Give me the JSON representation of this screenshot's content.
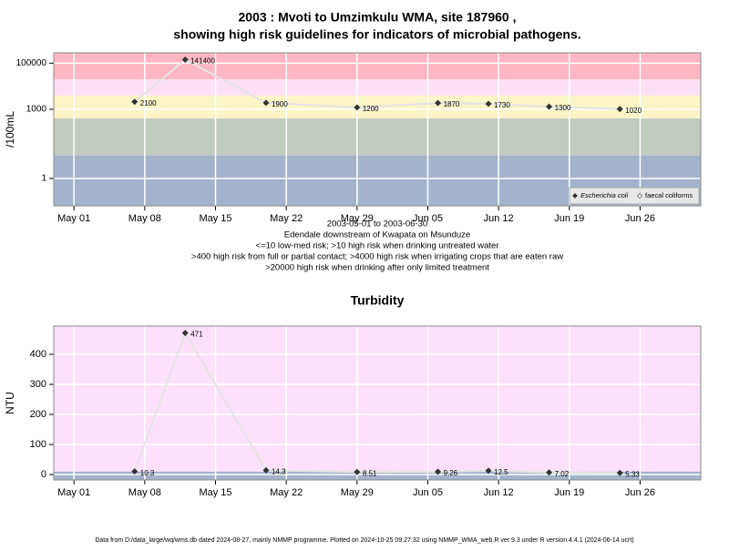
{
  "chart_data": [
    {
      "type": "line",
      "title": [
        "2003 : Mvoti to Umzimkulu WMA, site 187960 ,",
        "showing high risk guidelines for indicators of microbial pathogens."
      ],
      "ylabel": "/100mL",
      "log_y": true,
      "grid": true,
      "legend": "bottom-right",
      "x": [
        "2003-05-07",
        "2003-05-12",
        "2003-05-20",
        "2003-05-29",
        "2003-06-06",
        "2003-06-11",
        "2003-06-17",
        "2003-06-24"
      ],
      "xlim": [
        "2003-04-29",
        "2003-07-02"
      ],
      "xticks": [
        {
          "value": "2003-05-01",
          "label": "May 01"
        },
        {
          "value": "2003-05-08",
          "label": "May 08"
        },
        {
          "value": "2003-05-15",
          "label": "May 15"
        },
        {
          "value": "2003-05-22",
          "label": "May 22"
        },
        {
          "value": "2003-05-29",
          "label": "May 29"
        },
        {
          "value": "2003-06-05",
          "label": "Jun 05"
        },
        {
          "value": "2003-06-12",
          "label": "Jun 12"
        },
        {
          "value": "2003-06-19",
          "label": "Jun 19"
        },
        {
          "value": "2003-06-26",
          "label": "Jun 26"
        }
      ],
      "ylim": [
        0.065,
        280000
      ],
      "yticks": [
        1,
        1000,
        100000
      ],
      "bands": [
        {
          "from": 0.065,
          "to": 10,
          "color": "#a3b3cc"
        },
        {
          "from": 10,
          "to": 400,
          "color": "#c2cbc0"
        },
        {
          "from": 400,
          "to": 4000,
          "color": "#fbf5c7"
        },
        {
          "from": 4000,
          "to": 20000,
          "color": "#fde0f3"
        },
        {
          "from": 20000,
          "to": 280000,
          "color": "#ffb6c4"
        }
      ],
      "series": [
        {
          "name": "Escherichia coli",
          "color": "#333333",
          "values": [
            2100,
            141400,
            1900,
            1200,
            1870,
            1730,
            1300,
            1020
          ]
        },
        {
          "name": "faecal coliforms",
          "color": "#ffffff",
          "values": [
            null,
            null,
            null,
            null,
            null,
            null,
            null,
            null
          ]
        }
      ],
      "notes": [
        "2003-05-01 to 2003-06-30",
        "Edendale downstream of Kwapata on Msunduze",
        "<=10 low-med risk; >10 high risk when drinking untreated water",
        ">400 high risk from full or partial contact; >4000 high risk when irrigating crops that are eaten raw",
        ">20000 high risk when drinking after only limited treatment"
      ]
    },
    {
      "type": "line",
      "title": [
        "Turbidity"
      ],
      "ylabel": "NTU",
      "log_y": false,
      "grid": true,
      "x": [
        "2003-05-07",
        "2003-05-12",
        "2003-05-20",
        "2003-05-29",
        "2003-06-06",
        "2003-06-11",
        "2003-06-17",
        "2003-06-24"
      ],
      "xlim": [
        "2003-04-29",
        "2003-07-02"
      ],
      "xticks": [
        {
          "value": "2003-05-01",
          "label": "May 01"
        },
        {
          "value": "2003-05-08",
          "label": "May 08"
        },
        {
          "value": "2003-05-15",
          "label": "May 15"
        },
        {
          "value": "2003-05-22",
          "label": "May 22"
        },
        {
          "value": "2003-05-29",
          "label": "May 29"
        },
        {
          "value": "2003-06-05",
          "label": "Jun 05"
        },
        {
          "value": "2003-06-12",
          "label": "Jun 12"
        },
        {
          "value": "2003-06-19",
          "label": "Jun 19"
        },
        {
          "value": "2003-06-26",
          "label": "Jun 26"
        }
      ],
      "ylim": [
        -18,
        494
      ],
      "yticks": [
        0,
        100,
        200,
        300,
        400
      ],
      "bands": [
        {
          "from": -18,
          "to": 10,
          "color": "#a3b3cc"
        },
        {
          "from": 10,
          "to": 494,
          "color": "#fde0fc"
        }
      ],
      "series": [
        {
          "name": "Turbidity",
          "color": "#333333",
          "values": [
            10.3,
            471,
            14.3,
            8.51,
            9.26,
            12.5,
            7.02,
            5.33
          ]
        }
      ]
    }
  ],
  "footer": "Data from D:/data_large/wq/wms.db dated 2024-08-27, mainly NMMP programme. Plotted on 2024-10-25 09:27:32 using NMMP_WMA_web.R ver 9.3 under R version 4.4.1 (2024-06-14 ucrt)"
}
